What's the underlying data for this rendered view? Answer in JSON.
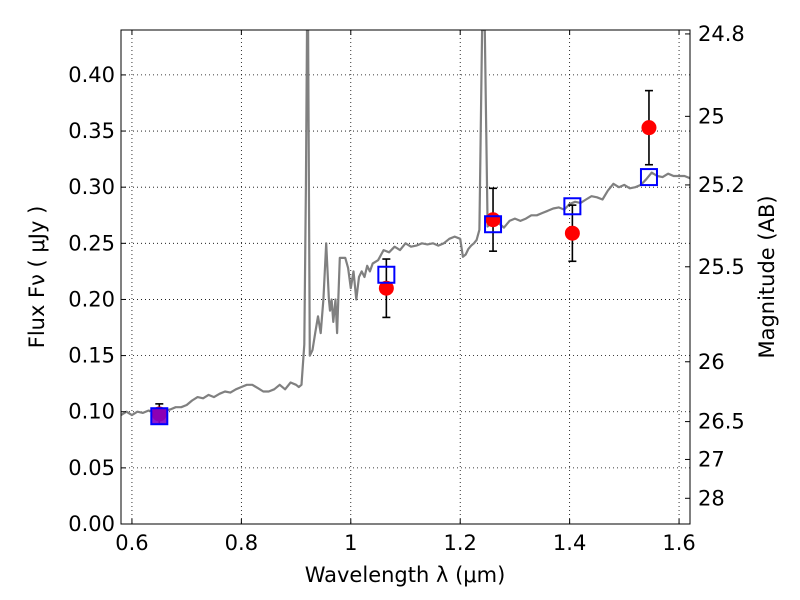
{
  "chart_data": {
    "type": "scatter",
    "title": "",
    "xlabel": "Wavelength  λ (μm)",
    "ylabel": "Flux  Fν  ( μJy )",
    "y2label": "Magnitude (AB)",
    "xlim": [
      0.58,
      1.62
    ],
    "ylim": [
      0.0,
      0.44
    ],
    "grid": true,
    "x_ticks": [
      0.6,
      0.8,
      1.0,
      1.2,
      1.4,
      1.6
    ],
    "x_tick_labels": [
      "0.6",
      "0.8",
      "1",
      "1.2",
      "1.4",
      "1.6"
    ],
    "y_ticks": [
      0.0,
      0.05,
      0.1,
      0.15,
      0.2,
      0.25,
      0.3,
      0.35,
      0.4
    ],
    "y_tick_labels": [
      "0.00",
      "0.05",
      "0.10",
      "0.15",
      "0.20",
      "0.25",
      "0.30",
      "0.35",
      "0.40"
    ],
    "y2_ticks": [
      {
        "label": "24.8",
        "flux": 0.4365
      },
      {
        "label": "25",
        "flux": 0.3631
      },
      {
        "label": "25.2",
        "flux": 0.302
      },
      {
        "label": "25.5",
        "flux": 0.2291
      },
      {
        "label": "26",
        "flux": 0.1445
      },
      {
        "label": "26.5",
        "flux": 0.0912
      },
      {
        "label": "27",
        "flux": 0.0575
      },
      {
        "label": "28",
        "flux": 0.0229
      }
    ],
    "series": [
      {
        "style": "line",
        "color": "#808080",
        "x": [
          0.58,
          0.59,
          0.6,
          0.61,
          0.62,
          0.63,
          0.64,
          0.65,
          0.66,
          0.67,
          0.68,
          0.69,
          0.7,
          0.71,
          0.72,
          0.73,
          0.74,
          0.75,
          0.76,
          0.77,
          0.78,
          0.79,
          0.8,
          0.81,
          0.82,
          0.83,
          0.84,
          0.85,
          0.86,
          0.87,
          0.88,
          0.89,
          0.9,
          0.905,
          0.91,
          0.915,
          0.918,
          0.92,
          0.922,
          0.925,
          0.93,
          0.935,
          0.94,
          0.945,
          0.95,
          0.955,
          0.96,
          0.962,
          0.965,
          0.968,
          0.972,
          0.975,
          0.98,
          0.985,
          0.99,
          0.995,
          1.0,
          1.005,
          1.01,
          1.015,
          1.02,
          1.025,
          1.03,
          1.035,
          1.04,
          1.05,
          1.06,
          1.07,
          1.08,
          1.09,
          1.1,
          1.11,
          1.12,
          1.13,
          1.14,
          1.15,
          1.16,
          1.17,
          1.18,
          1.19,
          1.2,
          1.205,
          1.21,
          1.215,
          1.22,
          1.225,
          1.23,
          1.235,
          1.24,
          1.245,
          1.25,
          1.26,
          1.27,
          1.28,
          1.29,
          1.3,
          1.31,
          1.32,
          1.33,
          1.34,
          1.35,
          1.36,
          1.37,
          1.38,
          1.39,
          1.4,
          1.41,
          1.42,
          1.43,
          1.44,
          1.45,
          1.46,
          1.47,
          1.48,
          1.49,
          1.5,
          1.51,
          1.52,
          1.53,
          1.54,
          1.55,
          1.56,
          1.57,
          1.58,
          1.59,
          1.6,
          1.61,
          1.62
        ],
        "y": [
          0.097,
          0.1,
          0.097,
          0.1,
          0.099,
          0.101,
          0.1,
          0.1,
          0.101,
          0.102,
          0.104,
          0.104,
          0.106,
          0.11,
          0.113,
          0.112,
          0.115,
          0.113,
          0.116,
          0.118,
          0.117,
          0.12,
          0.122,
          0.124,
          0.124,
          0.121,
          0.118,
          0.118,
          0.12,
          0.124,
          0.12,
          0.126,
          0.124,
          0.122,
          0.124,
          0.16,
          0.3,
          0.44,
          0.44,
          0.15,
          0.155,
          0.17,
          0.185,
          0.17,
          0.2,
          0.25,
          0.2,
          0.19,
          0.2,
          0.18,
          0.2,
          0.17,
          0.237,
          0.237,
          0.237,
          0.228,
          0.21,
          0.225,
          0.2,
          0.22,
          0.225,
          0.22,
          0.23,
          0.225,
          0.232,
          0.235,
          0.244,
          0.242,
          0.247,
          0.244,
          0.25,
          0.247,
          0.248,
          0.25,
          0.249,
          0.25,
          0.248,
          0.25,
          0.254,
          0.256,
          0.254,
          0.238,
          0.24,
          0.245,
          0.248,
          0.25,
          0.253,
          0.262,
          0.44,
          0.44,
          0.265,
          0.27,
          0.268,
          0.264,
          0.27,
          0.272,
          0.27,
          0.272,
          0.275,
          0.275,
          0.277,
          0.279,
          0.281,
          0.282,
          0.28,
          0.285,
          0.287,
          0.286,
          0.289,
          0.292,
          0.291,
          0.289,
          0.297,
          0.303,
          0.3,
          0.302,
          0.299,
          0.3,
          0.302,
          0.307,
          0.313,
          0.31,
          0.309,
          0.312,
          0.31,
          0.31,
          0.31,
          0.308
        ]
      },
      {
        "style": "open-square",
        "color": "#0000ff",
        "x": [
          0.65,
          1.065,
          1.26,
          1.405,
          1.545
        ],
        "y": [
          0.096,
          0.222,
          0.267,
          0.283,
          0.309
        ]
      },
      {
        "style": "filled-circle",
        "color": "#ff0000",
        "x": [
          0.65,
          1.065,
          1.26,
          1.405,
          1.545
        ],
        "y": [
          0.098,
          0.21,
          0.271,
          0.259,
          0.353
        ],
        "yerr": [
          0.009,
          0.026,
          0.028,
          0.025,
          0.033
        ]
      }
    ]
  }
}
